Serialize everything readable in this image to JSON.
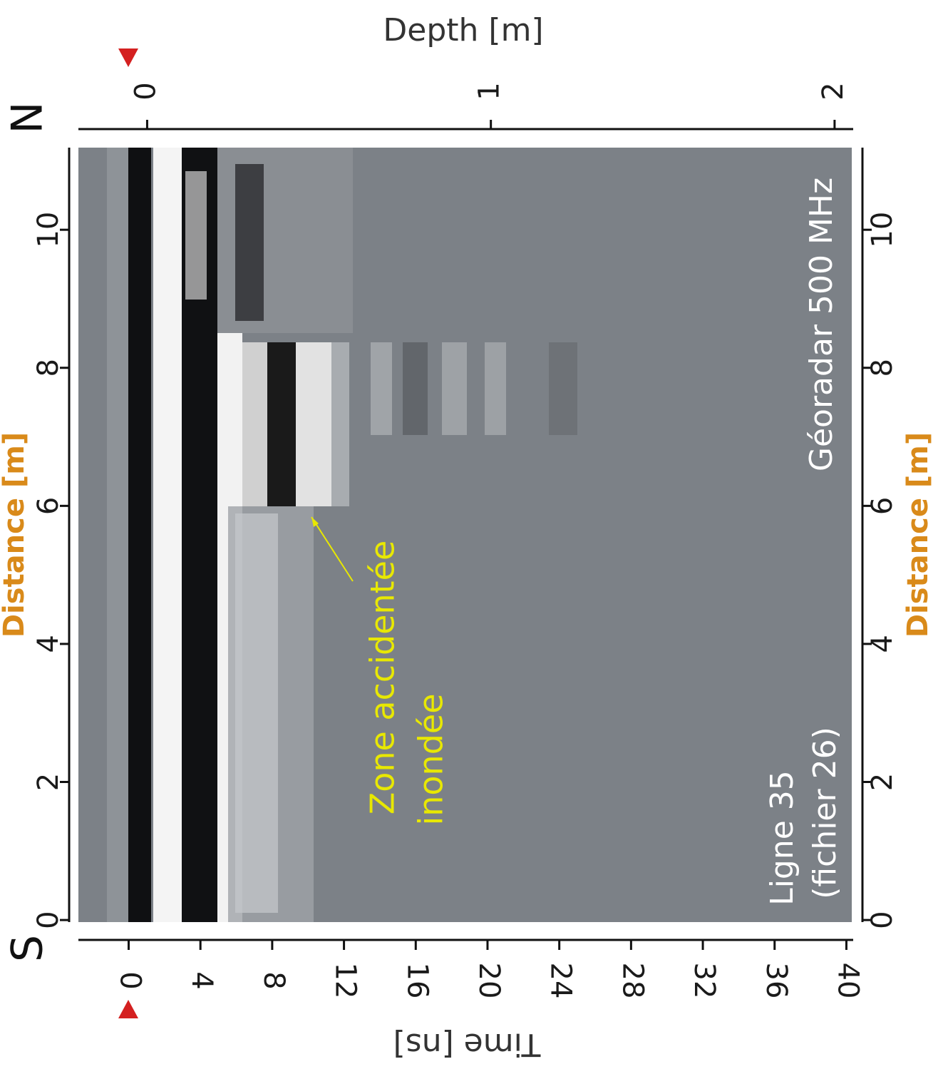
{
  "chart_data": {
    "type": "radargram",
    "x_label": "Time [ns]",
    "xlim": [
      -2.8,
      40.3
    ],
    "xticks": [
      0,
      4,
      8,
      12,
      16,
      20,
      24,
      28,
      32,
      36,
      40
    ],
    "x2_label": "Depth [m]",
    "x2lim": [
      -0.2,
      2.05
    ],
    "x2ticks": [
      0,
      1,
      2
    ],
    "y_label": "Distance [m]",
    "ylim": [
      -0.03,
      11.19
    ],
    "yticks": [
      0,
      2,
      4,
      6,
      8,
      10
    ],
    "north": "N",
    "south": "S",
    "annotations": [
      "Zone accidentée",
      "inondée",
      "Géoradar 500 MHz",
      "Ligne 35",
      "(fichier 26)"
    ]
  }
}
